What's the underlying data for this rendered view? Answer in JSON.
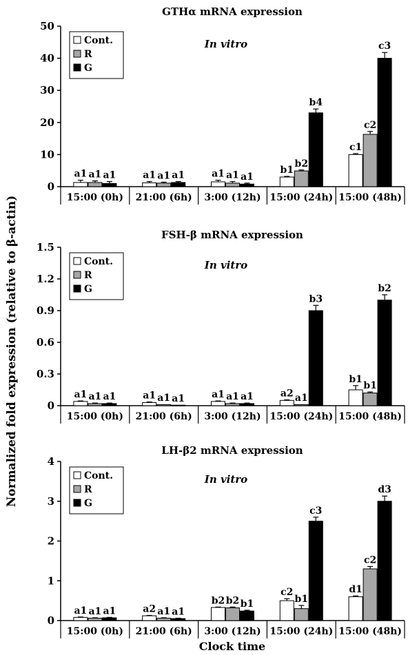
{
  "figure": {
    "ylabel": "Normalized fold expression (relative to β-actin)",
    "xlabel": "Clock time",
    "annotation": "In vitro"
  },
  "legend": [
    "Cont.",
    "R",
    "G"
  ],
  "colors": {
    "Cont.": "#ffffff",
    "R": "#a6a6a6",
    "G": "#000000",
    "axis": "#000000"
  },
  "chart_data": [
    {
      "type": "bar",
      "title": "GTHα mRNA expression",
      "categories": [
        "15:00 (0h)",
        "21:00 (6h)",
        "3:00 (12h)",
        "15:00 (24h)",
        "15:00 (48h)"
      ],
      "ylim": [
        0,
        50
      ],
      "yticks": [
        "0",
        "10",
        "20",
        "30",
        "40",
        "50"
      ],
      "legend_position": "top-left",
      "series": [
        {
          "name": "Cont.",
          "values": [
            1.3,
            1.2,
            1.5,
            3.0,
            10.0
          ],
          "errors": [
            0.7,
            0.4,
            0.5,
            0.2,
            0.3
          ],
          "letters": [
            "a1",
            "a1",
            "a1",
            "b1",
            "c1"
          ]
        },
        {
          "name": "R",
          "values": [
            1.3,
            1.1,
            1.1,
            4.9,
            16.3
          ],
          "errors": [
            0.5,
            0.3,
            0.5,
            0.3,
            0.9
          ],
          "letters": [
            "a1",
            "a1",
            "a1",
            "b2",
            "c2"
          ]
        },
        {
          "name": "G",
          "values": [
            1.0,
            1.3,
            0.8,
            23.0,
            40.0
          ],
          "errors": [
            0.6,
            0.3,
            0.3,
            1.2,
            1.8
          ],
          "letters": [
            "a1",
            "a1",
            "a1",
            "b4",
            "c3"
          ]
        }
      ]
    },
    {
      "type": "bar",
      "title": "FSH-β mRNA expression",
      "categories": [
        "15:00 (0h)",
        "21:00 (6h)",
        "3:00 (12h)",
        "15:00 (24h)",
        "15:00 (48h)"
      ],
      "ylim": [
        0,
        1.5
      ],
      "yticks": [
        "0",
        "0.3",
        "0.6",
        "0.9",
        "1.2",
        "1.5"
      ],
      "legend_position": "top-left",
      "series": [
        {
          "name": "Cont.",
          "values": [
            0.04,
            0.03,
            0.04,
            0.05,
            0.15
          ],
          "errors": [
            0.005,
            0.005,
            0.005,
            0.005,
            0.04
          ],
          "letters": [
            "a1",
            "a1",
            "a1",
            "a2",
            "b1"
          ]
        },
        {
          "name": "R",
          "values": [
            0.02,
            0.01,
            0.02,
            0.01,
            0.12
          ],
          "errors": [
            0.005,
            0.003,
            0.005,
            0.003,
            0.01
          ],
          "letters": [
            "a1",
            "a1",
            "a1",
            "a1",
            "b1"
          ]
        },
        {
          "name": "G",
          "values": [
            0.02,
            0.005,
            0.02,
            0.9,
            1.0
          ],
          "errors": [
            0.005,
            0.002,
            0.005,
            0.05,
            0.05
          ],
          "letters": [
            "a1",
            "a1",
            "a1",
            "b3",
            "b2"
          ]
        }
      ]
    },
    {
      "type": "bar",
      "title": "LH-β2 mRNA expression",
      "categories": [
        "15:00 (0h)",
        "21:00 (6h)",
        "3:00 (12h)",
        "15:00 (24h)",
        "15:00 (48h)"
      ],
      "ylim": [
        0,
        4
      ],
      "yticks": [
        "0",
        "1",
        "2",
        "3",
        "4"
      ],
      "legend_position": "top-left",
      "series": [
        {
          "name": "Cont.",
          "values": [
            0.08,
            0.12,
            0.33,
            0.5,
            0.6
          ],
          "errors": [
            0.01,
            0.01,
            0.01,
            0.05,
            0.02
          ],
          "letters": [
            "a1",
            "a2",
            "b2",
            "c2",
            "d1"
          ]
        },
        {
          "name": "R",
          "values": [
            0.06,
            0.06,
            0.32,
            0.3,
            1.3
          ],
          "errors": [
            0.01,
            0.01,
            0.02,
            0.08,
            0.06
          ],
          "letters": [
            "a1",
            "a1",
            "b2",
            "b1",
            "c2"
          ]
        },
        {
          "name": "G",
          "values": [
            0.07,
            0.05,
            0.24,
            2.5,
            3.0
          ],
          "errors": [
            0.01,
            0.01,
            0.02,
            0.1,
            0.13
          ],
          "letters": [
            "a1",
            "a1",
            "b1",
            "c3",
            "d3"
          ]
        }
      ]
    }
  ]
}
